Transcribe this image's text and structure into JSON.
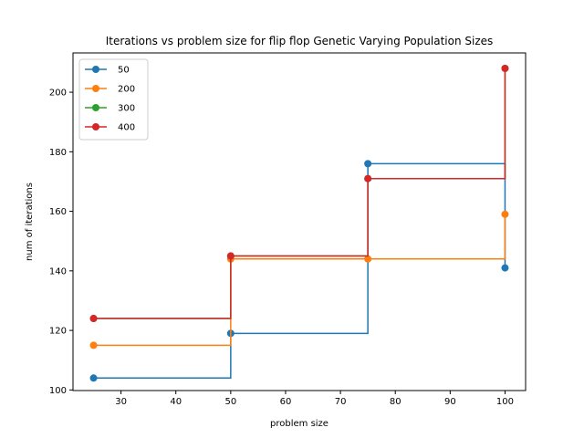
{
  "chart_data": {
    "type": "line",
    "drawstyle": "steps-post",
    "title": "Iterations vs problem size for flip flop Genetic Varying Population Sizes",
    "xlabel": "problem size",
    "ylabel": "num of iterations",
    "xlim": [
      21.25,
      103.75
    ],
    "ylim": [
      99.8,
      213.2
    ],
    "xticks": [
      30,
      40,
      50,
      60,
      70,
      80,
      90,
      100
    ],
    "yticks": [
      100,
      120,
      140,
      160,
      180,
      200
    ],
    "grid": false,
    "legend_position": "top-left",
    "x": [
      25,
      50,
      75,
      100
    ],
    "series": [
      {
        "name": "50",
        "color": "#1f77b4",
        "values": [
          104,
          119,
          176,
          141
        ]
      },
      {
        "name": "200",
        "color": "#ff7f0e",
        "values": [
          115,
          144,
          144,
          159
        ]
      },
      {
        "name": "300",
        "color": "#2ca02c",
        "values": [
          124,
          145,
          171,
          208
        ]
      },
      {
        "name": "400",
        "color": "#d62728",
        "values": [
          124,
          145,
          171,
          208
        ]
      }
    ]
  }
}
